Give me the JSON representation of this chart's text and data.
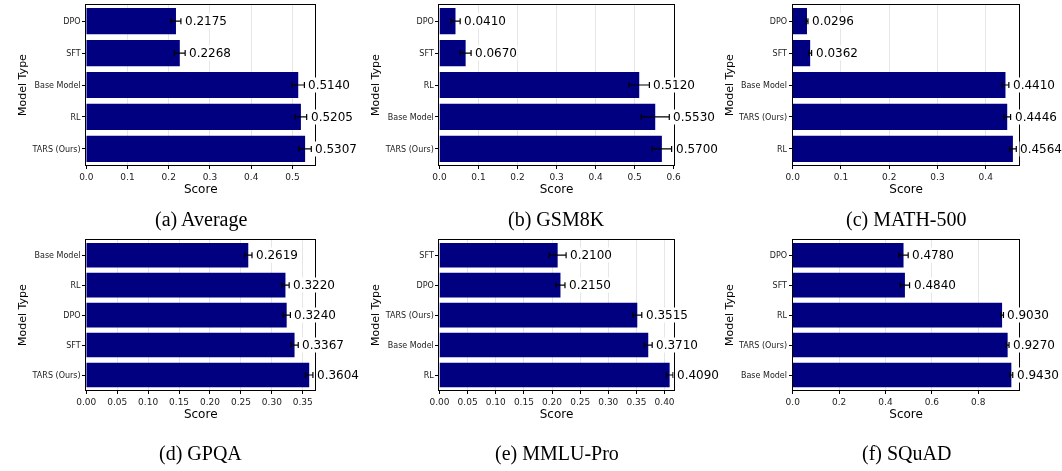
{
  "chart_data": [
    {
      "type": "bar",
      "orientation": "horizontal",
      "title": "(a) Average",
      "xlabel": "Score",
      "ylabel": "Model Type",
      "categories": [
        "DPO",
        "SFT",
        "Base Model",
        "RL",
        "TARS (Ours)"
      ],
      "values": [
        0.2175,
        0.2268,
        0.514,
        0.5205,
        0.5307
      ],
      "errors": [
        0.012,
        0.013,
        0.015,
        0.014,
        0.015
      ],
      "value_labels": [
        "0.2175",
        "0.2268",
        "0.5140",
        "0.5205",
        "0.5307"
      ],
      "color": "#000080",
      "xlim": [
        0,
        0.555
      ],
      "xticks": [
        {
          "value": 0,
          "label": "0.0"
        },
        0.1,
        0.2,
        0.3,
        0.4,
        0.5
      ],
      "grid": "x"
    },
    {
      "type": "bar",
      "orientation": "horizontal",
      "title": "(b) GSM8K",
      "xlabel": "Score",
      "ylabel": "Model Type",
      "categories": [
        "DPO",
        "SFT",
        "RL",
        "Base Model",
        "TARS (Ours)"
      ],
      "values": [
        0.041,
        0.067,
        0.512,
        0.553,
        0.57
      ],
      "errors": [
        0.012,
        0.014,
        0.026,
        0.036,
        0.025
      ],
      "value_labels": [
        "0.0410",
        "0.0670",
        "0.5120",
        "0.5530",
        "0.5700"
      ],
      "color": "#000080",
      "xlim": [
        0,
        0.6
      ],
      "xticks": [
        {
          "value": 0,
          "label": "0.0"
        },
        0.1,
        0.2,
        0.3,
        0.4,
        0.5,
        0.6
      ],
      "grid": "x"
    },
    {
      "type": "bar",
      "orientation": "horizontal",
      "title": "(c) MATH-500",
      "xlabel": "Score",
      "ylabel": "Model Type",
      "categories": [
        "DPO",
        "SFT",
        "Base Model",
        "TARS (Ours)",
        "RL"
      ],
      "values": [
        0.0296,
        0.0362,
        0.441,
        0.4446,
        0.4564
      ],
      "errors": [
        0.002,
        0.003,
        0.007,
        0.007,
        0.007
      ],
      "value_labels": [
        "0.0296",
        "0.0362",
        "0.4410",
        "0.4446",
        "0.4564"
      ],
      "color": "#000080",
      "xlim": [
        0,
        0.47
      ],
      "xticks": [
        {
          "value": 0,
          "label": "0.0"
        },
        0.1,
        0.2,
        0.3,
        0.4
      ],
      "grid": "x"
    },
    {
      "type": "bar",
      "orientation": "horizontal",
      "title": "(d) GPQA",
      "xlabel": "Score",
      "ylabel": "Model Type",
      "categories": [
        "Base Model",
        "RL",
        "DPO",
        "SFT",
        "TARS (Ours)"
      ],
      "values": [
        0.2619,
        0.322,
        0.324,
        0.3367,
        0.3604
      ],
      "errors": [
        0.006,
        0.006,
        0.006,
        0.006,
        0.006
      ],
      "value_labels": [
        "0.2619",
        "0.3220",
        "0.3240",
        "0.3367",
        "0.3604"
      ],
      "color": "#000080",
      "xlim": [
        0,
        0.37
      ],
      "xticks": [
        {
          "value": 0,
          "label": "0.00"
        },
        0.05,
        {
          "value": 0.1,
          "label": "0.10"
        },
        0.15,
        {
          "value": 0.2,
          "label": "0.20"
        },
        0.25,
        {
          "value": 0.3,
          "label": "0.30"
        },
        0.35
      ],
      "grid": "x"
    },
    {
      "type": "bar",
      "orientation": "horizontal",
      "title": "(e) MMLU-Pro",
      "xlabel": "Score",
      "ylabel": "Model Type",
      "categories": [
        "SFT",
        "DPO",
        "TARS (Ours)",
        "Base Model",
        "RL"
      ],
      "values": [
        0.21,
        0.215,
        0.3515,
        0.371,
        0.409
      ],
      "errors": [
        0.015,
        0.008,
        0.008,
        0.007,
        0.006
      ],
      "value_labels": [
        "0.2100",
        "0.2150",
        "0.3515",
        "0.3710",
        "0.4090"
      ],
      "color": "#000080",
      "xlim": [
        0,
        0.416
      ],
      "xticks": [
        {
          "value": 0,
          "label": "0.00"
        },
        0.05,
        {
          "value": 0.1,
          "label": "0.10"
        },
        0.15,
        {
          "value": 0.2,
          "label": "0.20"
        },
        0.25,
        {
          "value": 0.3,
          "label": "0.30"
        },
        0.35,
        {
          "value": 0.4,
          "label": "0.40"
        }
      ],
      "grid": "x"
    },
    {
      "type": "bar",
      "orientation": "horizontal",
      "title": "(f) SQuAD",
      "xlabel": "Score",
      "ylabel": "Model Type",
      "categories": [
        "DPO",
        "SFT",
        "RL",
        "TARS (Ours)",
        "Base Model"
      ],
      "values": [
        0.478,
        0.484,
        0.903,
        0.927,
        0.943
      ],
      "errors": [
        0.02,
        0.02,
        0.006,
        0.006,
        0.006
      ],
      "value_labels": [
        "0.4780",
        "0.4840",
        "0.9030",
        "0.9270",
        "0.9430"
      ],
      "color": "#000080",
      "xlim": [
        0,
        0.978
      ],
      "xticks": [
        {
          "value": 0,
          "label": "0.0"
        },
        0.2,
        0.4,
        0.6,
        0.8
      ],
      "grid": "x"
    }
  ]
}
